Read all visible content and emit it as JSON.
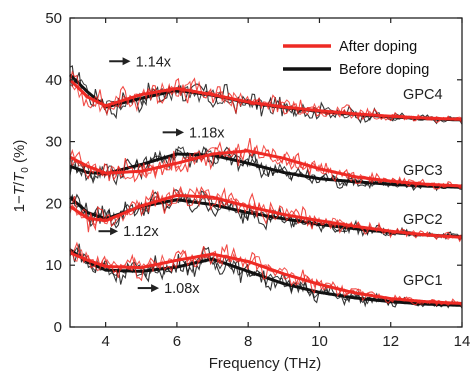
{
  "chart_data": {
    "type": "line",
    "title": "",
    "xlabel": "Frequency (THz)",
    "ylabel_parts": [
      "1−",
      "T",
      "/",
      "T",
      "0",
      " (%)"
    ],
    "xlim": [
      3,
      14
    ],
    "ylim": [
      0,
      50
    ],
    "xticks": [
      4,
      6,
      8,
      10,
      12,
      14
    ],
    "yticks": [
      0,
      10,
      20,
      30,
      40,
      50
    ],
    "grid": false,
    "legend_position": "top-right",
    "colors": {
      "after": "#ee2a24",
      "before": "#111111",
      "axis": "#222222",
      "arrow": "#222222"
    },
    "legend": [
      {
        "label": "After doping",
        "color": "#ee2a24"
      },
      {
        "label": "Before doping",
        "color": "#111111"
      }
    ],
    "series": [
      {
        "name": "GPC4",
        "label": "GPC4",
        "label_x": 12.9,
        "label_y": 36.9,
        "before": {
          "x": [
            3.0,
            3.5,
            4.0,
            5.0,
            6.0,
            7.0,
            8.0,
            9.0,
            10.0,
            11.0,
            12.0,
            13.0,
            14.0
          ],
          "y": [
            40.8,
            38.0,
            35.6,
            37.0,
            38.3,
            37.5,
            36.3,
            35.5,
            34.9,
            34.4,
            34.0,
            33.7,
            33.5
          ]
        },
        "after": {
          "x": [
            3.0,
            3.5,
            4.0,
            5.0,
            6.0,
            7.0,
            8.0,
            9.0,
            10.0,
            11.0,
            12.0,
            13.0,
            14.0
          ],
          "y": [
            40.0,
            37.2,
            35.8,
            37.6,
            38.6,
            37.6,
            36.4,
            35.6,
            35.0,
            34.5,
            34.1,
            33.8,
            33.6
          ]
        }
      },
      {
        "name": "GPC3",
        "label": "GPC3",
        "label_x": 12.9,
        "label_y": 24.6,
        "before": {
          "x": [
            3.0,
            3.5,
            4.0,
            5.0,
            6.0,
            7.0,
            8.0,
            9.0,
            10.0,
            11.0,
            12.0,
            13.0,
            14.0
          ],
          "y": [
            26.0,
            25.0,
            24.8,
            26.3,
            28.0,
            27.8,
            26.5,
            25.0,
            24.0,
            23.5,
            23.1,
            22.8,
            22.6
          ]
        },
        "after": {
          "x": [
            3.0,
            3.5,
            4.0,
            5.0,
            6.0,
            7.0,
            8.0,
            9.0,
            10.0,
            11.0,
            12.0,
            13.0,
            14.0
          ],
          "y": [
            27.5,
            26.0,
            24.9,
            25.2,
            26.5,
            28.0,
            28.5,
            27.3,
            25.6,
            24.3,
            23.6,
            23.1,
            22.8
          ]
        }
      },
      {
        "name": "GPC2",
        "label": "GPC2",
        "label_x": 12.9,
        "label_y": 16.7,
        "before": {
          "x": [
            3.0,
            3.5,
            4.0,
            5.0,
            6.0,
            7.0,
            8.0,
            9.0,
            10.0,
            11.0,
            12.0,
            13.0,
            14.0
          ],
          "y": [
            21.0,
            18.5,
            17.5,
            19.5,
            20.6,
            19.8,
            18.5,
            17.5,
            16.6,
            15.9,
            15.3,
            14.9,
            14.6
          ]
        },
        "after": {
          "x": [
            3.0,
            3.5,
            4.0,
            5.0,
            6.0,
            7.0,
            8.0,
            9.0,
            10.0,
            11.0,
            12.0,
            13.0,
            14.0
          ],
          "y": [
            19.5,
            17.6,
            17.2,
            19.6,
            21.3,
            21.0,
            19.5,
            18.2,
            17.2,
            16.3,
            15.5,
            14.9,
            14.5
          ]
        }
      },
      {
        "name": "GPC1",
        "label": "GPC1",
        "label_x": 12.9,
        "label_y": 6.8,
        "before": {
          "x": [
            3.0,
            3.5,
            4.0,
            5.0,
            6.0,
            7.0,
            8.0,
            9.0,
            10.0,
            11.0,
            12.0,
            13.0,
            14.0
          ],
          "y": [
            12.5,
            10.5,
            9.2,
            9.0,
            9.7,
            11.0,
            9.0,
            7.0,
            5.6,
            4.7,
            4.1,
            3.7,
            3.5
          ]
        },
        "after": {
          "x": [
            3.0,
            3.5,
            4.0,
            5.0,
            6.0,
            7.0,
            8.0,
            9.0,
            10.0,
            11.0,
            12.0,
            13.0,
            14.0
          ],
          "y": [
            12.0,
            10.8,
            9.8,
            9.6,
            10.8,
            11.8,
            10.6,
            8.6,
            6.9,
            5.5,
            4.6,
            4.1,
            3.8
          ]
        }
      }
    ],
    "annotations": [
      {
        "text": "1.14x",
        "arrow_x": [
          4.1,
          4.7
        ],
        "y": 43.0
      },
      {
        "text": "1.18x",
        "arrow_x": [
          5.6,
          6.2
        ],
        "y": 31.5
      },
      {
        "text": "1.12x",
        "arrow_x": [
          3.8,
          4.35
        ],
        "y": 15.5
      },
      {
        "text": "1.08x",
        "arrow_x": [
          4.9,
          5.5
        ],
        "y": 6.3
      }
    ]
  }
}
